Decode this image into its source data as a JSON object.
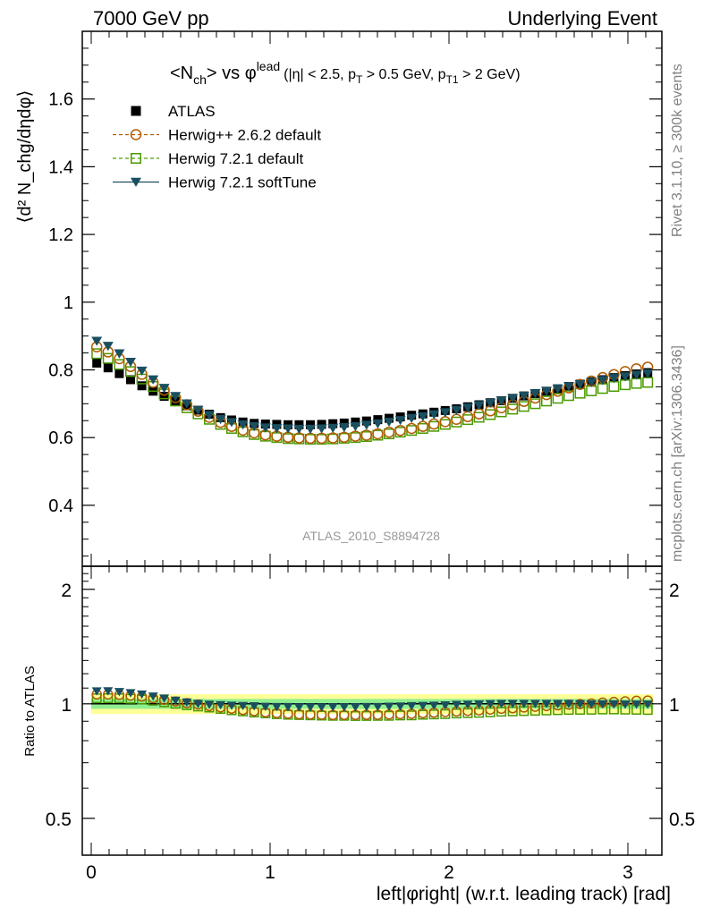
{
  "header": {
    "left": "7000 GeV pp",
    "right": "Underlying Event"
  },
  "side_labels": {
    "rivet": "Rivet 3.1.10, ≥ 300k events",
    "mcplots": "mcplots.cern.ch [arXiv:1306.3436]"
  },
  "plot_title": {
    "main": "<N",
    "main_sub": "ch",
    "vs": "> vs φ",
    "vs_sup": "lead",
    "cuts": "(|η| < 2.5, p",
    "cuts_sub1": "T",
    "cuts_mid": " > 0.5 GeV, p",
    "cuts_sub2": "T1",
    "cuts_end": " > 2 GeV)"
  },
  "analysis_id": "ATLAS_2010_S8894728",
  "colors": {
    "atlas": "#000000",
    "herwigpp": "#b05c00",
    "herwig721": "#4a9a00",
    "softtune": "#1a4f60",
    "band_inner": "#90ee90",
    "band_outer": "#ffff99"
  },
  "chart_data": [
    {
      "type": "scatter",
      "panel": "main",
      "ylabel": "⟨d² N_chg/dηdφ⟩",
      "ylim": [
        0.22,
        1.8
      ],
      "xlim": [
        -0.05,
        3.19
      ],
      "yticks": [
        0.4,
        0.6,
        0.8,
        1.0,
        1.2,
        1.4,
        1.6
      ],
      "ytick_labels": [
        "0.4",
        "0.6",
        "0.8",
        "1",
        "1.2",
        "1.4",
        "1.6"
      ],
      "legend_position": "top-left",
      "x": [
        0.031,
        0.094,
        0.157,
        0.22,
        0.283,
        0.346,
        0.408,
        0.471,
        0.534,
        0.597,
        0.66,
        0.723,
        0.785,
        0.848,
        0.911,
        0.974,
        1.037,
        1.1,
        1.162,
        1.225,
        1.288,
        1.351,
        1.414,
        1.477,
        1.539,
        1.602,
        1.665,
        1.728,
        1.791,
        1.854,
        1.916,
        1.979,
        2.042,
        2.105,
        2.168,
        2.231,
        2.293,
        2.356,
        2.419,
        2.482,
        2.545,
        2.608,
        2.67,
        2.733,
        2.796,
        2.859,
        2.922,
        2.985,
        3.048,
        3.111
      ],
      "series": [
        {
          "name": "ATLAS",
          "marker": "filled-square",
          "color": "#000000",
          "values": [
            0.82,
            0.806,
            0.789,
            0.771,
            0.753,
            0.737,
            0.722,
            0.708,
            0.694,
            0.681,
            0.669,
            0.659,
            0.652,
            0.646,
            0.642,
            0.64,
            0.639,
            0.638,
            0.638,
            0.638,
            0.639,
            0.641,
            0.643,
            0.646,
            0.649,
            0.653,
            0.657,
            0.661,
            0.666,
            0.67,
            0.675,
            0.68,
            0.685,
            0.691,
            0.697,
            0.703,
            0.709,
            0.716,
            0.723,
            0.73,
            0.737,
            0.744,
            0.751,
            0.758,
            0.765,
            0.771,
            0.777,
            0.783,
            0.788,
            0.792
          ]
        },
        {
          "name": "Herwig++ 2.6.2 default",
          "marker": "open-circle",
          "color": "#b05c00",
          "values": [
            0.868,
            0.853,
            0.833,
            0.81,
            0.787,
            0.763,
            0.74,
            0.718,
            0.697,
            0.678,
            0.66,
            0.645,
            0.633,
            0.622,
            0.614,
            0.608,
            0.604,
            0.601,
            0.599,
            0.598,
            0.598,
            0.599,
            0.601,
            0.604,
            0.607,
            0.611,
            0.616,
            0.621,
            0.627,
            0.633,
            0.64,
            0.647,
            0.654,
            0.662,
            0.67,
            0.679,
            0.688,
            0.697,
            0.707,
            0.717,
            0.727,
            0.737,
            0.747,
            0.757,
            0.767,
            0.777,
            0.786,
            0.795,
            0.803,
            0.808
          ]
        },
        {
          "name": "Herwig 7.2.1 default",
          "marker": "open-square",
          "color": "#4a9a00",
          "values": [
            0.848,
            0.834,
            0.816,
            0.795,
            0.773,
            0.751,
            0.729,
            0.708,
            0.688,
            0.67,
            0.654,
            0.639,
            0.627,
            0.617,
            0.609,
            0.604,
            0.6,
            0.597,
            0.596,
            0.595,
            0.595,
            0.596,
            0.598,
            0.6,
            0.603,
            0.607,
            0.611,
            0.616,
            0.621,
            0.627,
            0.633,
            0.639,
            0.646,
            0.653,
            0.66,
            0.668,
            0.676,
            0.684,
            0.692,
            0.7,
            0.708,
            0.716,
            0.724,
            0.731,
            0.738,
            0.745,
            0.751,
            0.756,
            0.76,
            0.763
          ]
        },
        {
          "name": "Herwig 7.2.1 softTune",
          "marker": "filled-triangle-down",
          "color": "#1a4f60",
          "values": [
            0.885,
            0.87,
            0.848,
            0.823,
            0.797,
            0.771,
            0.746,
            0.722,
            0.7,
            0.681,
            0.666,
            0.654,
            0.645,
            0.638,
            0.633,
            0.629,
            0.627,
            0.626,
            0.625,
            0.625,
            0.626,
            0.628,
            0.63,
            0.633,
            0.637,
            0.641,
            0.646,
            0.651,
            0.657,
            0.662,
            0.668,
            0.674,
            0.681,
            0.688,
            0.695,
            0.702,
            0.709,
            0.716,
            0.723,
            0.73,
            0.737,
            0.744,
            0.751,
            0.757,
            0.763,
            0.769,
            0.775,
            0.78,
            0.785,
            0.789
          ]
        }
      ]
    },
    {
      "type": "scatter",
      "panel": "ratio",
      "ylabel": "Ratio to ATLAS",
      "xlabel": "left|φright| (w.r.t. leading track) [rad]",
      "ylim": [
        0.4,
        2.3
      ],
      "log_y": true,
      "xlim": [
        -0.05,
        3.19
      ],
      "xticks": [
        0,
        1,
        2,
        3
      ],
      "xtick_labels": [
        "0",
        "1",
        "2",
        "3"
      ],
      "yticks": [
        0.5,
        1,
        2
      ],
      "ytick_labels": [
        "0.5",
        "1",
        "2"
      ],
      "band_inner_halfwidth": 0.03,
      "band_outer_halfwidth": 0.06
    }
  ]
}
